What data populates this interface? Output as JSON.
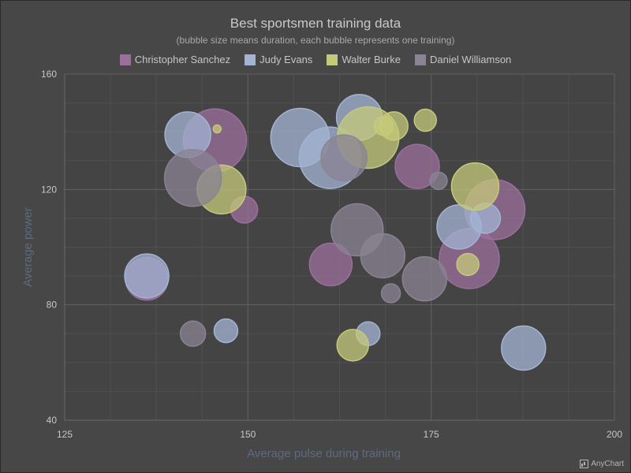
{
  "chart_data": {
    "type": "bubble",
    "title": "Best sportsmen training data",
    "subtitle": "(bubble size means duration, each bubble represents one training)",
    "xlabel": "Average pulse during training",
    "ylabel": "Average power",
    "xlim": [
      125,
      200
    ],
    "ylim": [
      40,
      160
    ],
    "x_ticks": [
      125,
      150,
      175,
      200
    ],
    "y_ticks": [
      40,
      80,
      120,
      160
    ],
    "grid": true,
    "legend_position": "top-center",
    "series": [
      {
        "name": "Christopher Sanchez",
        "color": "#9b6f9c",
        "points": [
          {
            "x": 145.5,
            "y": 137,
            "size": 40
          },
          {
            "x": 149.5,
            "y": 113,
            "size": 17
          },
          {
            "x": 136.2,
            "y": 89,
            "size": 27
          },
          {
            "x": 161.3,
            "y": 94,
            "size": 27
          },
          {
            "x": 173.1,
            "y": 128,
            "size": 28
          },
          {
            "x": 183.7,
            "y": 113,
            "size": 38
          },
          {
            "x": 180.2,
            "y": 96,
            "size": 38
          }
        ]
      },
      {
        "name": "Judy Evans",
        "color": "#a3b4d3",
        "points": [
          {
            "x": 141.8,
            "y": 139,
            "size": 29
          },
          {
            "x": 157.1,
            "y": 138,
            "size": 37
          },
          {
            "x": 165.2,
            "y": 145,
            "size": 29
          },
          {
            "x": 161.2,
            "y": 131,
            "size": 39
          },
          {
            "x": 136.2,
            "y": 90,
            "size": 28
          },
          {
            "x": 147.0,
            "y": 71,
            "size": 15
          },
          {
            "x": 166.4,
            "y": 70,
            "size": 15
          },
          {
            "x": 178.8,
            "y": 107,
            "size": 28
          },
          {
            "x": 182.4,
            "y": 110,
            "size": 19
          },
          {
            "x": 187.6,
            "y": 65,
            "size": 28
          }
        ]
      },
      {
        "name": "Walter Burke",
        "color": "#c5c97a",
        "points": [
          {
            "x": 146.4,
            "y": 120,
            "size": 31
          },
          {
            "x": 145.8,
            "y": 141,
            "size": 5
          },
          {
            "x": 166.4,
            "y": 138,
            "size": 39
          },
          {
            "x": 168.5,
            "y": 142,
            "size": 12
          },
          {
            "x": 169.9,
            "y": 142,
            "size": 18
          },
          {
            "x": 174.2,
            "y": 144,
            "size": 14
          },
          {
            "x": 181.0,
            "y": 121,
            "size": 30
          },
          {
            "x": 180.0,
            "y": 94,
            "size": 14
          },
          {
            "x": 164.3,
            "y": 66,
            "size": 20
          }
        ]
      },
      {
        "name": "Daniel Williamson",
        "color": "#8a8393",
        "points": [
          {
            "x": 142.5,
            "y": 124,
            "size": 36
          },
          {
            "x": 163.1,
            "y": 131,
            "size": 29
          },
          {
            "x": 164.9,
            "y": 106,
            "size": 33
          },
          {
            "x": 168.4,
            "y": 97,
            "size": 28
          },
          {
            "x": 176.0,
            "y": 123,
            "size": 11
          },
          {
            "x": 174.1,
            "y": 89,
            "size": 28
          },
          {
            "x": 169.5,
            "y": 84,
            "size": 12
          },
          {
            "x": 142.5,
            "y": 70,
            "size": 16
          }
        ]
      }
    ]
  },
  "watermark": "AnyChart"
}
